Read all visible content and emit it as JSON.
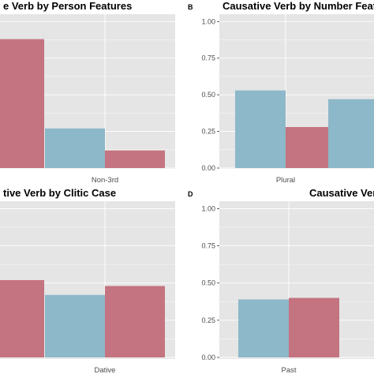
{
  "colors": {
    "panel_bg": "#e5e5e5",
    "grid": "#ffffff",
    "series_a": "#8db8c9",
    "series_b": "#c47480"
  },
  "chart_data": [
    {
      "panel": "",
      "type": "bar",
      "title": "e Verb by Person Features",
      "categories": [
        "",
        "Non-3rd"
      ],
      "series": [
        {
          "values": [
            null,
            0.27
          ]
        },
        {
          "values": [
            0.88,
            0.12
          ]
        }
      ],
      "ylim": [
        0,
        1.0
      ],
      "grid": true
    },
    {
      "panel": "B",
      "type": "bar",
      "title": "Causative Verb by Number Featu",
      "categories": [
        "Plural",
        ""
      ],
      "series": [
        {
          "values": [
            0.53,
            0.47
          ]
        },
        {
          "values": [
            0.28,
            null
          ]
        }
      ],
      "yticks": [
        "0.00",
        "0.25",
        "0.50",
        "0.75",
        "1.00"
      ],
      "ylim": [
        0,
        1.0
      ],
      "grid": true
    },
    {
      "panel": "",
      "type": "bar",
      "title": "tive Verb by Clitic Case",
      "categories": [
        "",
        "Dative"
      ],
      "series": [
        {
          "values": [
            null,
            0.42
          ]
        },
        {
          "values": [
            0.52,
            0.48
          ]
        }
      ],
      "ylim": [
        0,
        1.0
      ],
      "grid": true
    },
    {
      "panel": "D",
      "type": "bar",
      "title": "Causative Verb",
      "categories": [
        "Past"
      ],
      "series": [
        {
          "values": [
            0.39
          ]
        },
        {
          "values": [
            0.4
          ]
        }
      ],
      "yticks": [
        "0.00",
        "0.25",
        "0.50",
        "0.75",
        "1.00"
      ],
      "ylim": [
        0,
        1.0
      ],
      "grid": true
    }
  ]
}
